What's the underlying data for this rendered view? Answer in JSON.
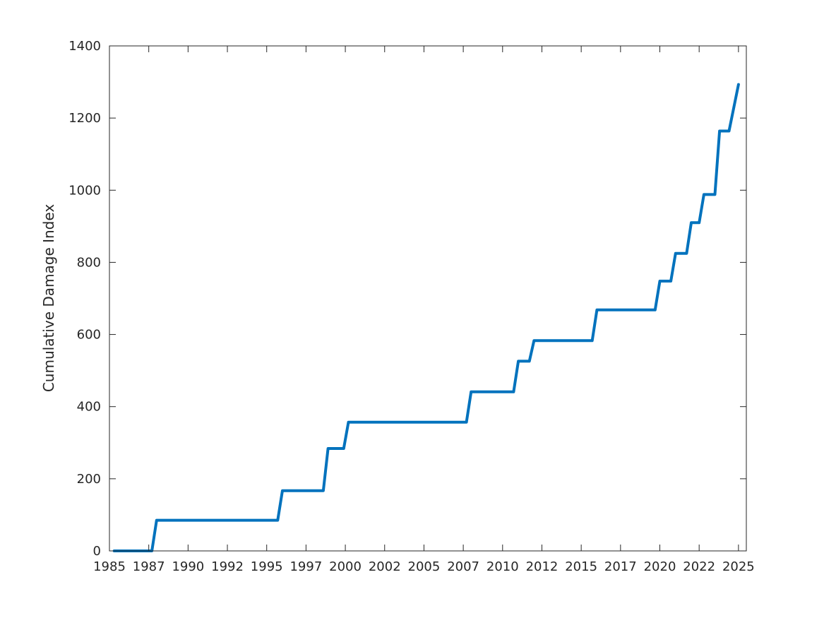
{
  "chart_data": {
    "type": "line",
    "title": "",
    "xlabel": "",
    "ylabel": "Cumulative Damage Index",
    "xlim": [
      1985.0,
      2025.5
    ],
    "ylim": [
      0,
      1400
    ],
    "x_ticks": [
      "1985",
      "1987",
      "1990",
      "1992",
      "1995",
      "1997",
      "2000",
      "2002",
      "2005",
      "2007",
      "2010",
      "2012",
      "2015",
      "2017",
      "2020",
      "2022",
      "2025"
    ],
    "x_tick_values": [
      1985.0,
      1987.5,
      1990.0,
      1992.5,
      1995.0,
      1997.5,
      2000.0,
      2002.5,
      2005.0,
      2007.5,
      2010.0,
      2012.5,
      2015.0,
      2017.5,
      2020.0,
      2022.5,
      2025.0
    ],
    "y_ticks": [
      0,
      200,
      400,
      600,
      800,
      1000,
      1200,
      1400
    ],
    "grid": false,
    "box": true,
    "line_color": "#0072BD",
    "series": [
      {
        "x": [
          1985.3,
          1987.7,
          1988.0,
          1995.7,
          1996.0,
          1998.6,
          1998.9,
          1999.9,
          2000.2,
          2007.7,
          2008.0,
          2010.7,
          2011.0,
          2011.7,
          2012.0,
          2015.7,
          2016.0,
          2019.7,
          2020.0,
          2020.7,
          2021.0,
          2021.7,
          2022.0,
          2022.5,
          2022.8,
          2023.5,
          2023.8,
          2024.4,
          2025.0
        ],
        "y": [
          0,
          0,
          85,
          85,
          167,
          167,
          284,
          284,
          357,
          357,
          441,
          441,
          526,
          526,
          583,
          583,
          668,
          668,
          748,
          748,
          825,
          825,
          910,
          910,
          988,
          988,
          1164,
          1164,
          1293
        ]
      }
    ]
  }
}
